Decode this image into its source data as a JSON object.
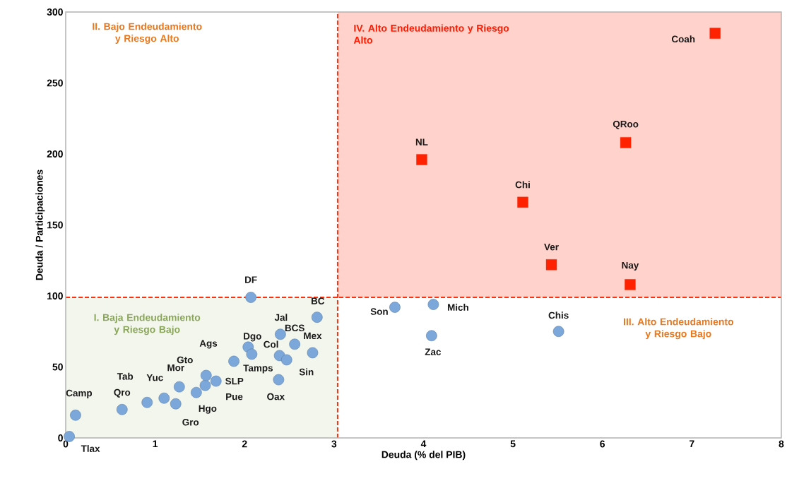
{
  "chart_data": {
    "type": "scatter",
    "xlabel": "Deuda (% del PIB)",
    "ylabel": "Deuda / Participaciones",
    "xlim": [
      0,
      8
    ],
    "ylim": [
      0,
      300
    ],
    "xticks": [
      0,
      1,
      2,
      3,
      4,
      5,
      6,
      7,
      8
    ],
    "yticks": [
      0,
      50,
      100,
      150,
      200,
      250,
      300
    ],
    "grid": false,
    "series": [
      {
        "marker": "circle",
        "color": "#7ba7db",
        "x": [
          0.04,
          0.11,
          0.63,
          0.91,
          1.1,
          1.23,
          1.27,
          1.46,
          1.56,
          1.57,
          1.68,
          1.88,
          2.04,
          2.08,
          2.39,
          2.47,
          2.38,
          2.56,
          2.4,
          2.76,
          2.81,
          2.07,
          3.68,
          4.11,
          4.09,
          5.51
        ],
        "values": [
          1,
          16,
          20,
          25,
          28,
          24,
          36,
          32,
          37,
          44,
          40,
          54,
          64,
          59,
          58,
          55,
          41,
          66,
          73,
          60,
          85,
          99,
          92,
          94,
          72,
          75
        ]
      },
      {
        "marker": "square",
        "color": "#ff2200",
        "x": [
          3.98,
          5.11,
          5.43,
          6.31,
          6.26,
          7.26
        ],
        "values": [
          196,
          166,
          122,
          108,
          208,
          285
        ]
      }
    ],
    "ref_lines": [
      {
        "axis": "x",
        "value": 3.04,
        "color": "#ff3010",
        "line_style": "dashed"
      },
      {
        "axis": "y",
        "value": 99,
        "color": "#ff3010",
        "line_style": "dashed"
      }
    ],
    "bands": [
      {
        "axis": "x",
        "from": 0,
        "to": 3.04,
        "color": "#f3f6ec"
      },
      {
        "axis": "x",
        "from": 3.04,
        "to": 8,
        "color": "#ffd3cc"
      }
    ],
    "annotations": [
      "I. Baja Endeudamiento y Riesgo Bajo",
      "II. Bajo Endeudamiento y Riesgo Alto",
      "III. Alto Endeudamiento y Riesgo Bajo",
      "IV. Alto Endeudamiento y Riesgo Alto",
      {
        "text": "Tlax",
        "x": 0.04,
        "y": 1
      },
      {
        "text": "Camp",
        "x": 0.11,
        "y": 16
      },
      {
        "text": "Qro",
        "x": 0.63,
        "y": 20
      },
      {
        "text": "Tab",
        "x": 0.91,
        "y": 25
      },
      {
        "text": "Yuc",
        "x": 1.1,
        "y": 28
      },
      {
        "text": "Gro",
        "x": 1.23,
        "y": 24
      },
      {
        "text": "Mor",
        "x": 1.27,
        "y": 36
      },
      {
        "text": "Hgo",
        "x": 1.46,
        "y": 32
      },
      {
        "text": "Pue",
        "x": 1.56,
        "y": 37
      },
      {
        "text": "Gto",
        "x": 1.57,
        "y": 44
      },
      {
        "text": "SLP",
        "x": 1.68,
        "y": 40
      },
      {
        "text": "Ags",
        "x": 1.88,
        "y": 54
      },
      {
        "text": "Dgo",
        "x": 2.04,
        "y": 64
      },
      {
        "text": "Tamps",
        "x": 2.08,
        "y": 59
      },
      {
        "text": "Col",
        "x": 2.39,
        "y": 58
      },
      {
        "text": "Sin",
        "x": 2.47,
        "y": 55
      },
      {
        "text": "Oax",
        "x": 2.38,
        "y": 41
      },
      {
        "text": "BCS",
        "x": 2.56,
        "y": 66
      },
      {
        "text": "Jal",
        "x": 2.4,
        "y": 73
      },
      {
        "text": "Mex",
        "x": 2.76,
        "y": 60
      },
      {
        "text": "BC",
        "x": 2.81,
        "y": 85
      },
      {
        "text": "DF",
        "x": 2.07,
        "y": 99
      },
      {
        "text": "Son",
        "x": 3.68,
        "y": 92
      },
      {
        "text": "Mich",
        "x": 4.11,
        "y": 94
      },
      {
        "text": "Zac",
        "x": 4.09,
        "y": 72
      },
      {
        "text": "Chis",
        "x": 5.51,
        "y": 75
      },
      {
        "text": "NL",
        "x": 3.98,
        "y": 196
      },
      {
        "text": "Chi",
        "x": 5.11,
        "y": 166
      },
      {
        "text": "Ver",
        "x": 5.43,
        "y": 122
      },
      {
        "text": "Nay",
        "x": 6.31,
        "y": 108
      },
      {
        "text": "QRoo",
        "x": 6.26,
        "y": 208
      },
      {
        "text": "Coah",
        "x": 7.26,
        "y": 285
      }
    ]
  }
}
